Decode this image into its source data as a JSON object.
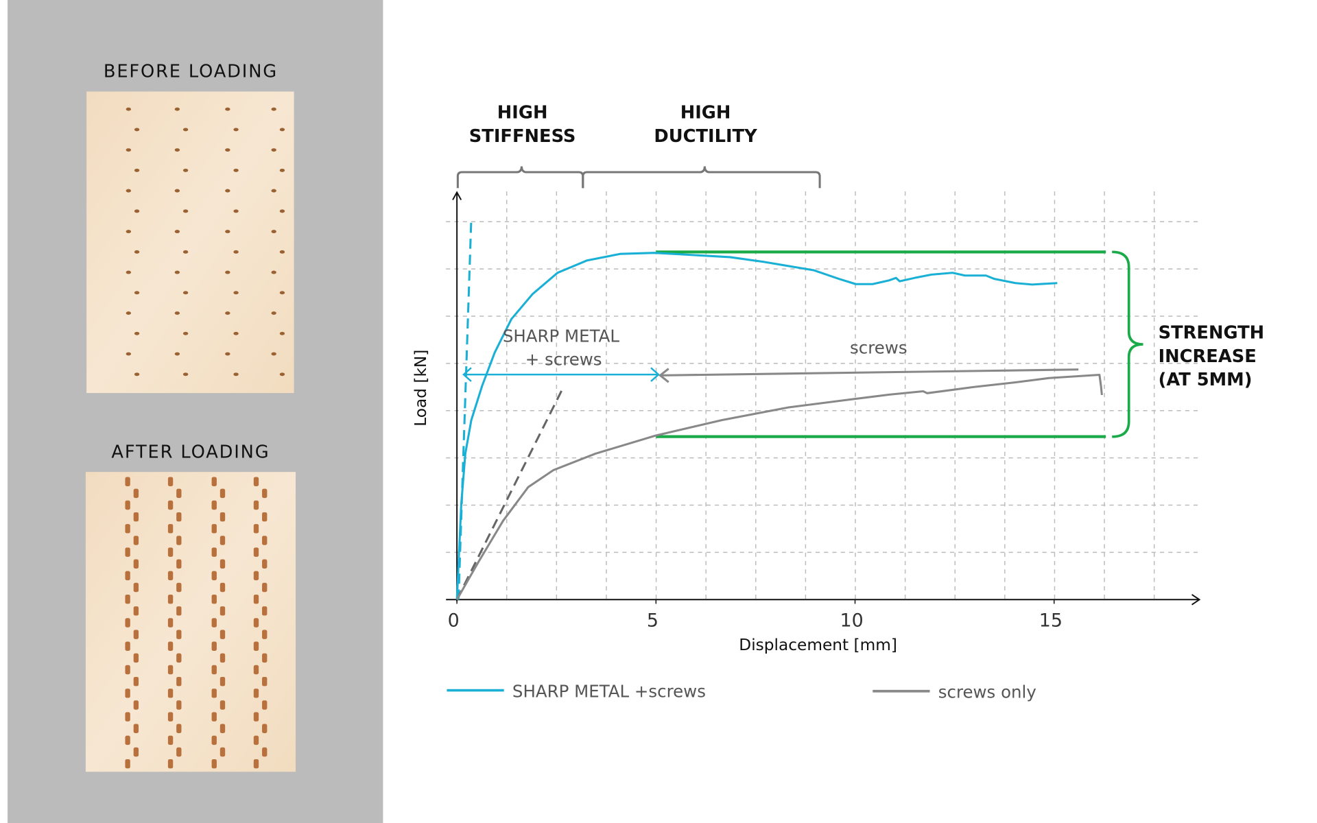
{
  "panels": {
    "before_title": "BEFORE LOADING",
    "after_title": "AFTER LOADING",
    "background_color": "#bbbbbb"
  },
  "annotations": {
    "high_stiffness": [
      "HIGH",
      "STIFFNESS"
    ],
    "high_ductility": [
      "HIGH",
      "DUCTILITY"
    ],
    "sharp_metal_label": [
      "SHARP METAL",
      "+ screws"
    ],
    "screws_label": "screws",
    "strength_increase": [
      "STRENGTH",
      "INCREASE",
      "(AT 5MM)"
    ]
  },
  "chart_data": {
    "type": "line",
    "xlabel": "Displacement [mm]",
    "ylabel": "Load [kN]",
    "xlim": [
      0,
      18
    ],
    "ylim": [
      0,
      8.5
    ],
    "x_ticks": [
      "0",
      "5",
      "10",
      "15"
    ],
    "x_tick_values": [
      0,
      5,
      10,
      15
    ],
    "y_ticks_labeled": false,
    "grid": true,
    "legend_position": "bottom",
    "series": [
      {
        "name": "SHARP METAL +screws",
        "color": "#1ab0d6",
        "points": [
          [
            0,
            0
          ],
          [
            0.11,
            2.03
          ],
          [
            0.21,
            3.09
          ],
          [
            0.36,
            3.8
          ],
          [
            0.63,
            4.52
          ],
          [
            0.95,
            5.23
          ],
          [
            1.37,
            5.94
          ],
          [
            1.9,
            6.47
          ],
          [
            2.53,
            6.92
          ],
          [
            3.27,
            7.18
          ],
          [
            4.11,
            7.32
          ],
          [
            4.96,
            7.34
          ],
          [
            5.59,
            7.31
          ],
          [
            6.86,
            7.25
          ],
          [
            7.7,
            7.15
          ],
          [
            8.97,
            6.97
          ],
          [
            9.6,
            6.79
          ],
          [
            10.02,
            6.68
          ],
          [
            10.44,
            6.68
          ],
          [
            10.86,
            6.76
          ],
          [
            11.03,
            6.81
          ],
          [
            11.12,
            6.74
          ],
          [
            11.5,
            6.81
          ],
          [
            11.92,
            6.88
          ],
          [
            12.45,
            6.92
          ],
          [
            12.76,
            6.86
          ],
          [
            13.29,
            6.86
          ],
          [
            13.5,
            6.79
          ],
          [
            14.03,
            6.7
          ],
          [
            14.45,
            6.67
          ],
          [
            15.08,
            6.7
          ]
        ]
      },
      {
        "name": "screws only",
        "color": "#888888",
        "points": [
          [
            0,
            0
          ],
          [
            0.53,
            0.78
          ],
          [
            1.16,
            1.67
          ],
          [
            1.79,
            2.38
          ],
          [
            2.42,
            2.74
          ],
          [
            3.48,
            3.09
          ],
          [
            4.98,
            3.47
          ],
          [
            6.65,
            3.8
          ],
          [
            8.33,
            4.07
          ],
          [
            9.81,
            4.23
          ],
          [
            10.86,
            4.34
          ],
          [
            11.71,
            4.41
          ],
          [
            11.81,
            4.37
          ],
          [
            12.97,
            4.5
          ],
          [
            14.03,
            4.6
          ],
          [
            14.87,
            4.69
          ],
          [
            16.14,
            4.76
          ],
          [
            16.18,
            4.51
          ],
          [
            16.2,
            4.33
          ]
        ]
      }
    ],
    "stiffness_lines": [
      {
        "color": "#1ab0d6",
        "points": [
          [
            0.04,
            0
          ],
          [
            0.36,
            8.07
          ]
        ]
      },
      {
        "color": "#666666",
        "points": [
          [
            0,
            0
          ],
          [
            2.64,
            4.44
          ]
        ]
      }
    ],
    "strength_levels_at_5mm": {
      "color": "#1aaa4a",
      "upper": 7.36,
      "lower": 3.45,
      "x_range": [
        5,
        16.3
      ]
    }
  }
}
